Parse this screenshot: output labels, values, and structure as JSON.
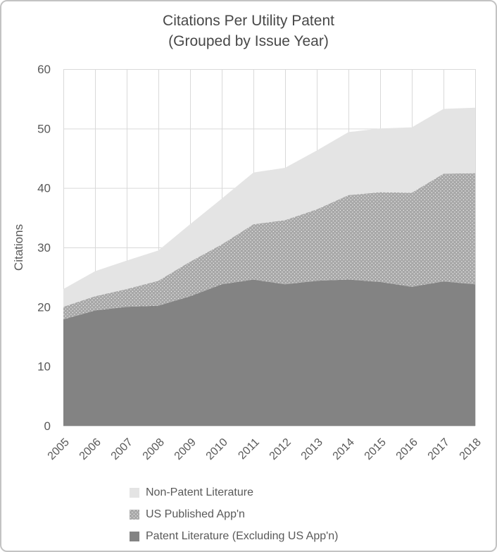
{
  "title": {
    "line1": "Citations Per Utility Patent",
    "line2": "(Grouped by Issue Year)"
  },
  "chart_data": {
    "type": "area",
    "stacked": true,
    "title": "Citations Per Utility Patent (Grouped by Issue Year)",
    "xlabel": "",
    "ylabel": "Citations",
    "ylim": [
      0,
      60
    ],
    "yticks": [
      0,
      10,
      20,
      30,
      40,
      50,
      60
    ],
    "grid": true,
    "legend_position": "bottom-left",
    "legend_order": [
      2,
      1,
      0
    ],
    "categories": [
      "2005",
      "2006",
      "2007",
      "2008",
      "2009",
      "2010",
      "2011",
      "2012",
      "2013",
      "2014",
      "2015",
      "2016",
      "2017",
      "2018"
    ],
    "series": [
      {
        "name": "Patent Literature (Excluding US App'n)",
        "fill": "solid",
        "color": "#838383",
        "values": [
          17.9,
          19.4,
          20.0,
          20.2,
          21.8,
          23.8,
          24.6,
          23.8,
          24.4,
          24.6,
          24.2,
          23.4,
          24.3,
          23.8
        ]
      },
      {
        "name": "US Published App'n",
        "fill": "dots",
        "color": "#a8a8a8",
        "dot_color": "#f2f2f2",
        "values": [
          2.1,
          2.4,
          3.0,
          4.2,
          5.8,
          6.7,
          9.3,
          10.8,
          12.0,
          14.2,
          15.1,
          15.8,
          18.1,
          18.7
        ]
      },
      {
        "name": "Non-Patent Literature",
        "fill": "solid",
        "color": "#e4e4e4",
        "values": [
          3.0,
          4.2,
          4.8,
          5.1,
          6.3,
          7.7,
          8.7,
          8.8,
          9.9,
          10.6,
          10.7,
          11.0,
          10.9,
          11.0
        ]
      }
    ],
    "stacked_totals": [
      23.0,
      26.0,
      27.8,
      29.5,
      33.9,
      38.2,
      42.6,
      43.4,
      46.3,
      49.4,
      50.0,
      50.2,
      53.3,
      53.5
    ],
    "colors": {
      "gridline": "#d9d9d9",
      "axis_text": "#595959",
      "title_text": "#484848",
      "background": "#ffffff",
      "frame_border": "#c3c3c3"
    }
  }
}
